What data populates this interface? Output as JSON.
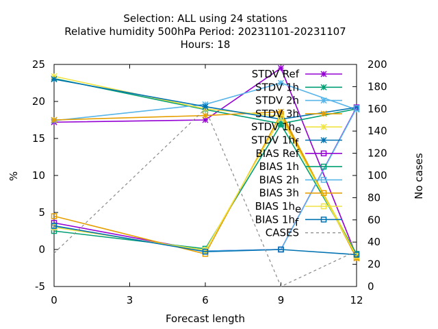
{
  "chart_data": {
    "type": "line",
    "title_lines": [
      "Selection: ALL using    24 stations",
      "Relative humidity 500hPa   Period: 20231101-20231107",
      "Hours:  18"
    ],
    "xlabel": "Forecast length",
    "ylabel": "%",
    "y2label": "No cases",
    "x": [
      0,
      6,
      9,
      12
    ],
    "xticks": [
      0,
      3,
      6,
      9,
      12
    ],
    "xlim": [
      0,
      12
    ],
    "ylim": [
      -5,
      25
    ],
    "yticks": [
      -5,
      0,
      5,
      10,
      15,
      20,
      25
    ],
    "y2lim": [
      0,
      200
    ],
    "y2ticks": [
      0,
      20,
      40,
      60,
      80,
      100,
      120,
      140,
      160,
      180,
      200
    ],
    "grid": false,
    "legend_position": "top-right",
    "series": [
      {
        "name": "STDV Ref",
        "axis": "y1",
        "color": "#9400d3",
        "marker": "x",
        "dash": "",
        "values": [
          17.2,
          17.5,
          24.5,
          -0.9
        ]
      },
      {
        "name": "STDV 1h",
        "axis": "y1",
        "color": "#009e73",
        "marker": "x",
        "dash": "",
        "values": [
          23.1,
          18.9,
          17.0,
          19.0
        ]
      },
      {
        "name": "STDV 2h",
        "axis": "y1",
        "color": "#56b4e9",
        "marker": "x",
        "dash": "",
        "values": [
          17.4,
          19.6,
          22.5,
          18.9
        ]
      },
      {
        "name": "STDV 3h",
        "axis": "y1",
        "color": "#e69f00",
        "marker": "x",
        "dash": "",
        "values": [
          17.5,
          18.1,
          18.6,
          -1.2
        ]
      },
      {
        "name": "STDV 1h_e",
        "axis": "y1",
        "color": "#f0e442",
        "marker": "x",
        "dash": "",
        "values": [
          23.4,
          19.0,
          18.0,
          -0.6
        ]
      },
      {
        "name": "STDV 1h_f",
        "axis": "y1",
        "color": "#0072b2",
        "marker": "x",
        "dash": "",
        "values": [
          23.0,
          19.3,
          17.6,
          19.2
        ]
      },
      {
        "name": "BIAS Ref",
        "axis": "y1",
        "color": "#9400d3",
        "marker": "sq",
        "dash": "",
        "values": [
          3.6,
          -0.2,
          0.0,
          19.2
        ]
      },
      {
        "name": "BIAS 1h",
        "axis": "y1",
        "color": "#009e73",
        "marker": "sq",
        "dash": "",
        "values": [
          2.5,
          0.1,
          16.9,
          -0.6
        ]
      },
      {
        "name": "BIAS 2h",
        "axis": "y1",
        "color": "#56b4e9",
        "marker": "sq",
        "dash": "",
        "values": [
          3.1,
          -0.2,
          0.0,
          19.1
        ]
      },
      {
        "name": "BIAS 3h",
        "axis": "y1",
        "color": "#e69f00",
        "marker": "sq",
        "dash": "",
        "values": [
          4.5,
          -0.6,
          18.3,
          -1.1
        ]
      },
      {
        "name": "BIAS 1h_e",
        "axis": "y1",
        "color": "#f0e442",
        "marker": "sq",
        "dash": "",
        "values": [
          3.0,
          -0.1,
          17.8,
          -0.9
        ]
      },
      {
        "name": "BIAS 1h_f",
        "axis": "y1",
        "color": "#0072b2",
        "marker": "sq",
        "dash": "",
        "values": [
          3.2,
          -0.3,
          0.0,
          -0.7
        ]
      },
      {
        "name": "CASES",
        "axis": "y2",
        "color": "#888888",
        "marker": "",
        "dash": "4,4",
        "values": [
          30,
          160,
          0,
          32
        ]
      }
    ]
  }
}
